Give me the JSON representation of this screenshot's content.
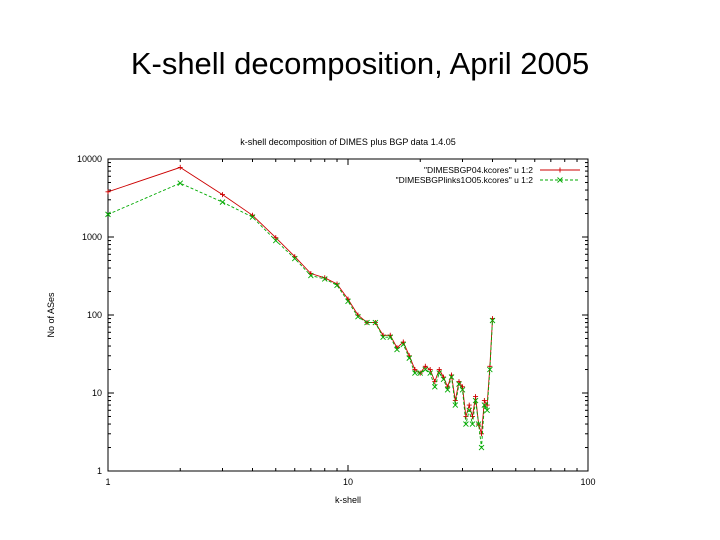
{
  "slide": {
    "title": "K-shell decomposition, April 2005"
  },
  "chart_data": {
    "type": "line",
    "title": "k-shell decomposition of DIMES plus BGP data 1.4.05",
    "xlabel": "k-shell",
    "ylabel": "No of ASes",
    "xscale": "log",
    "yscale": "log",
    "xlim": [
      1,
      100
    ],
    "ylim": [
      1,
      10000
    ],
    "xticks": [
      "1",
      "10",
      "100"
    ],
    "yticks": [
      "1",
      "10",
      "100",
      "1000",
      "10000"
    ],
    "grid": false,
    "legend": "top-right",
    "series": [
      {
        "name": "\"DIMESBGP04.kcores\" u 1:2",
        "color": "#cc0000",
        "marker": "+",
        "line": "solid",
        "x": [
          1,
          2,
          3,
          4,
          5,
          6,
          7,
          8,
          9,
          10,
          11,
          12,
          13,
          14,
          15,
          16,
          17,
          18,
          19,
          20,
          21,
          22,
          23,
          24,
          25,
          26,
          27,
          28,
          29,
          30,
          31,
          32,
          33,
          34,
          35,
          36,
          37,
          38,
          39,
          40
        ],
        "y": [
          3800,
          7800,
          3500,
          1900,
          980,
          560,
          340,
          300,
          250,
          160,
          100,
          80,
          80,
          55,
          55,
          38,
          45,
          30,
          20,
          18,
          22,
          20,
          14,
          20,
          16,
          12,
          17,
          8,
          14,
          12,
          5,
          7,
          5,
          9,
          4,
          3,
          8,
          7,
          22,
          90
        ]
      },
      {
        "name": "\"DIMESBGPlinks1O05.kcores\" u 1:2",
        "color": "#00aa00",
        "marker": "x",
        "line": "dashed",
        "x": [
          1,
          2,
          3,
          4,
          5,
          6,
          7,
          8,
          9,
          10,
          11,
          12,
          13,
          14,
          15,
          16,
          17,
          18,
          19,
          20,
          21,
          22,
          23,
          24,
          25,
          26,
          27,
          28,
          29,
          30,
          31,
          32,
          33,
          34,
          35,
          36,
          37,
          38,
          39,
          40
        ],
        "y": [
          1950,
          4900,
          2800,
          1800,
          900,
          530,
          320,
          290,
          240,
          150,
          95,
          80,
          80,
          52,
          52,
          36,
          42,
          28,
          18,
          18,
          20,
          18,
          12,
          18,
          15,
          11,
          16,
          7,
          13,
          11,
          4,
          6,
          4,
          8,
          4,
          2,
          7,
          6,
          20,
          85
        ]
      }
    ]
  }
}
